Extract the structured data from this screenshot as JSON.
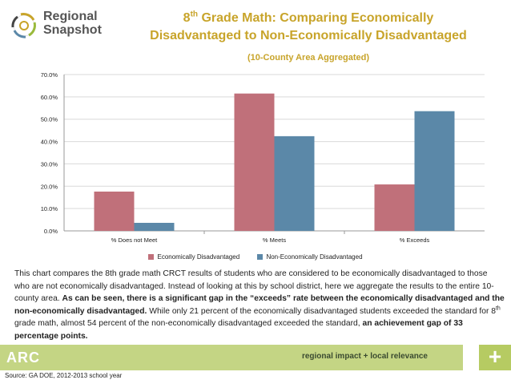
{
  "brand": {
    "line1": "Regional",
    "line2": "Snapshot"
  },
  "header": {
    "title_sup": "th",
    "title_pre": "8",
    "title_post1": " Grade Math: Comparing Economically",
    "title_line2": "Disadvantaged to Non-Economically Disadvantaged",
    "subtitle": "(10-County Area Aggregated)"
  },
  "colors": {
    "series1": "#c0707a",
    "series2": "#5b88a8",
    "accent": "#c8a42a",
    "footer": "#c4d584"
  },
  "chart_data": {
    "type": "bar",
    "categories": [
      "% Does not Meet",
      "% Meets",
      "% Exceeds"
    ],
    "series": [
      {
        "name": "Economically Disadvantaged",
        "values": [
          17.6,
          61.5,
          20.8
        ]
      },
      {
        "name": "Non-Economically Disadvantaged",
        "values": [
          3.6,
          42.4,
          53.6
        ]
      }
    ],
    "title": "8th Grade Math: Comparing Economically Disadvantaged to Non-Economically Disadvantaged",
    "subtitle": "(10-County Area Aggregated)",
    "xlabel": "",
    "ylabel": "",
    "ylim": [
      0,
      70
    ],
    "yticks": [
      "0.0%",
      "10.0%",
      "20.0%",
      "30.0%",
      "40.0%",
      "50.0%",
      "60.0%",
      "70.0%"
    ],
    "grid": true,
    "legend": "bottom"
  },
  "description": {
    "p1": "This chart compares the 8th grade math CRCT results of students who are considered to be economically disadvantaged to those who are not economically disadvantaged. Instead of looking at this by school district, here we aggregate the results to the entire 10-county area. ",
    "bold1": "As can be seen, there is a significant gap in the “exceeds” rate between the economically disadvantaged and the non-economically disadvantaged.",
    "p2": " While only 21 percent of the economically disadvantaged students exceeded the standard for 8",
    "p2_sup": "th",
    "p3": " grade math, almost 54 percent of the non-economically disadvantaged exceeded the standard, ",
    "bold2": "an achievement gap of 33 percentage points."
  },
  "footer": {
    "logo": "ARC",
    "tagline": "regional impact + local relevance",
    "plus": "+"
  },
  "source": "Source: GA DOE, 2012-2013 school year"
}
